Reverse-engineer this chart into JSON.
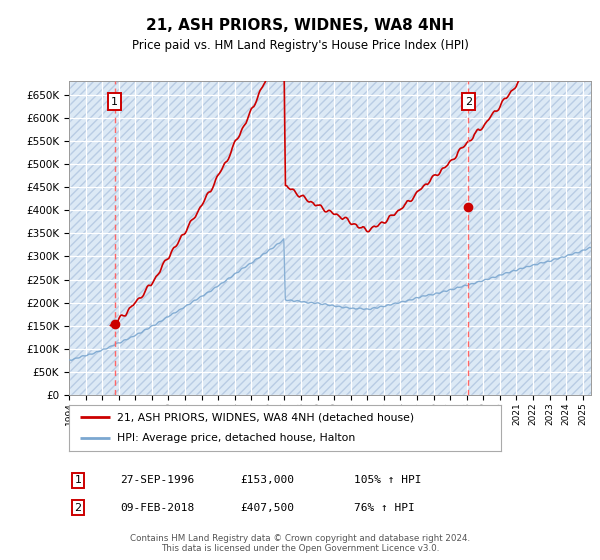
{
  "title": "21, ASH PRIORS, WIDNES, WA8 4NH",
  "subtitle": "Price paid vs. HM Land Registry's House Price Index (HPI)",
  "ylabel_ticks": [
    0,
    50000,
    100000,
    150000,
    200000,
    250000,
    300000,
    350000,
    400000,
    450000,
    500000,
    550000,
    600000,
    650000
  ],
  "ylim": [
    0,
    680000
  ],
  "xlim_start": 1994.0,
  "xlim_end": 2025.5,
  "sale1_year": 1996.75,
  "sale1_price": 153000,
  "sale1_label": "1",
  "sale1_date": "27-SEP-1996",
  "sale1_amount": "£153,000",
  "sale1_hpi": "105% ↑ HPI",
  "sale2_year": 2018.1,
  "sale2_price": 407500,
  "sale2_label": "2",
  "sale2_date": "09-FEB-2018",
  "sale2_amount": "£407,500",
  "sale2_hpi": "76% ↑ HPI",
  "legend_line1": "21, ASH PRIORS, WIDNES, WA8 4NH (detached house)",
  "legend_line2": "HPI: Average price, detached house, Halton",
  "footer": "Contains HM Land Registry data © Crown copyright and database right 2024.\nThis data is licensed under the Open Government Licence v3.0.",
  "hpi_color": "#7ba7d0",
  "price_color": "#cc0000",
  "plot_bg": "#dce9f5",
  "dashed_color": "#ff6666"
}
